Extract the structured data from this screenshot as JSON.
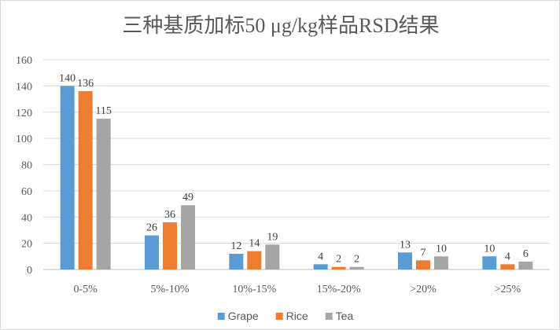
{
  "chart_data": {
    "type": "bar",
    "title": "三种基质加标50 μg/kg样品RSD结果",
    "xlabel": "",
    "ylabel": "",
    "categories": [
      "0-5%",
      "5%-10%",
      "10%-15%",
      "15%-20%",
      ">20%",
      ">25%"
    ],
    "series": [
      {
        "name": "Grape",
        "values": [
          140,
          26,
          12,
          4,
          13,
          10
        ],
        "color": "#5B9BD5"
      },
      {
        "name": "Rice",
        "values": [
          136,
          36,
          14,
          2,
          7,
          4
        ],
        "color": "#ED7D31"
      },
      {
        "name": "Tea",
        "values": [
          115,
          49,
          19,
          2,
          10,
          6
        ],
        "color": "#A5A5A5"
      }
    ],
    "ylim": [
      0,
      160
    ],
    "yticks": [
      0,
      20,
      40,
      60,
      80,
      100,
      120,
      140,
      160
    ],
    "grid": true,
    "data_labels": true,
    "legend": "bottom"
  }
}
